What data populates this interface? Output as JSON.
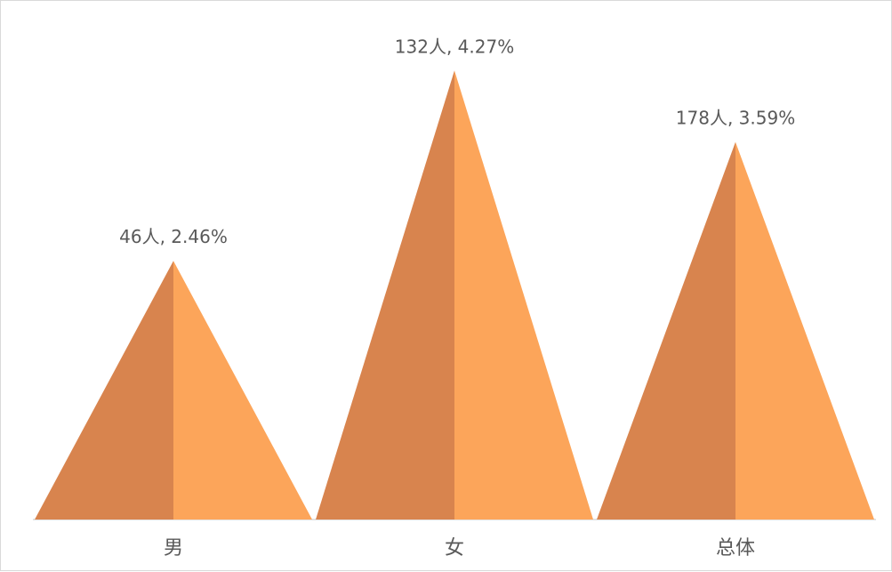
{
  "chart_data": {
    "type": "bar",
    "categories": [
      "男",
      "女",
      "总体"
    ],
    "series": [
      {
        "values": [
          2.46,
          4.27,
          3.59
        ],
        "counts": [
          46,
          132,
          178
        ],
        "labels": [
          "46人, 2.46%",
          "132人, 4.27%",
          "178人, 3.59%"
        ]
      }
    ],
    "ylim": [
      0,
      4.5
    ],
    "grid": false,
    "legend": "none",
    "title": "",
    "xlabel": "",
    "ylabel": ""
  },
  "colors": {
    "left_face": "#d8844e",
    "right_face": "#fca55a",
    "baseline": "#d9d9d9",
    "text": "#595959"
  }
}
